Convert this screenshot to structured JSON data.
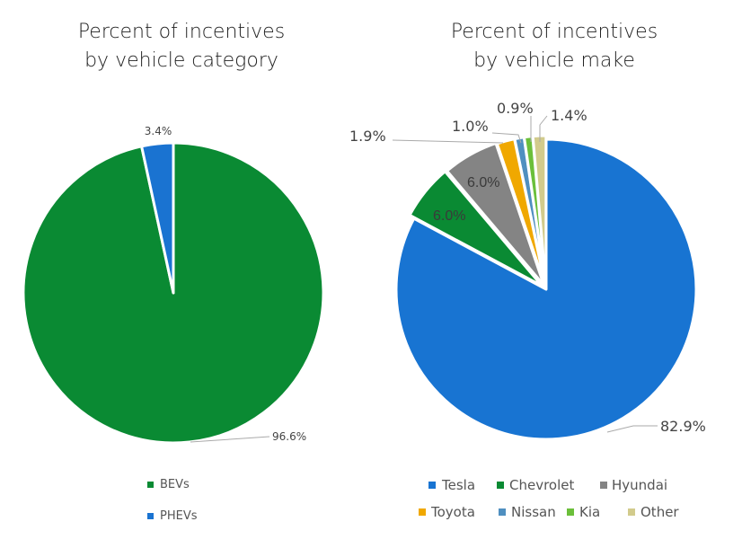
{
  "chart_data": [
    {
      "type": "pie",
      "title": [
        "Percent of incentives",
        "by vehicle category"
      ],
      "slices": [
        {
          "name": "BEVs",
          "value": 96.6,
          "label": "96.6%",
          "color": "#0a8a33"
        },
        {
          "name": "PHEVs",
          "value": 3.4,
          "label": "3.4%",
          "color": "#1a73d1"
        }
      ],
      "legend": "bottom"
    },
    {
      "type": "pie",
      "title": [
        "Percent of incentives",
        "by vehicle make"
      ],
      "slices": [
        {
          "name": "Tesla",
          "value": 82.9,
          "label": "82.9%",
          "color": "#1874d2"
        },
        {
          "name": "Chevrolet",
          "value": 6.0,
          "label": "6.0%",
          "color": "#0a8a33"
        },
        {
          "name": "Hyundai",
          "value": 6.0,
          "label": "6.0%",
          "color": "#848484"
        },
        {
          "name": "Toyota",
          "value": 1.9,
          "label": "1.9%",
          "color": "#f0a800"
        },
        {
          "name": "Nissan",
          "value": 1.0,
          "label": "1.0%",
          "color": "#4f8fc0"
        },
        {
          "name": "Kia",
          "value": 0.9,
          "label": "0.9%",
          "color": "#6bbf3a"
        },
        {
          "name": "Other",
          "value": 1.4,
          "label": "1.4%",
          "color": "#d2cb8c"
        }
      ],
      "legend": "bottom"
    }
  ]
}
